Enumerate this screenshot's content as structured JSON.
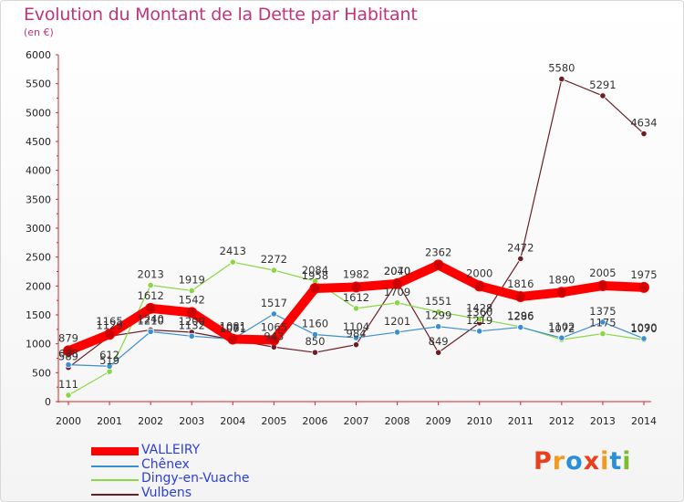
{
  "title": "Evolution du Montant de la Dette par Habitant",
  "unit_label": "(en €)",
  "logo": {
    "text": "Proxiti",
    "colors": [
      "#e8401c",
      "#f39a1e",
      "#2a8fd6",
      "#e8401c",
      "#f39a1e",
      "#2a8fd6",
      "#7bbd2e"
    ]
  },
  "chart_data": {
    "type": "line",
    "title": "Evolution du Montant de la Dette par Habitant",
    "ylabel": "(en €)",
    "xlabel": "",
    "ylim": [
      0,
      6000
    ],
    "yticks": [
      0,
      500,
      1000,
      1500,
      2000,
      2500,
      3000,
      3500,
      4000,
      4500,
      5000,
      5500,
      6000
    ],
    "x": [
      "2000",
      "2001",
      "2002",
      "2003",
      "2004",
      "2005",
      "2006",
      "2007",
      "2008",
      "2009",
      "2010",
      "2011",
      "2012",
      "2013",
      "2014"
    ],
    "grid": false,
    "legend_position": "bottom-left",
    "series": [
      {
        "name": "VALLEIRY",
        "color": "#ff0000",
        "values": [
          879,
          1165,
          1612,
          1542,
          1081,
          1065,
          1958,
          1982,
          2040,
          2362,
          2000,
          1816,
          1890,
          2005,
          1975
        ]
      },
      {
        "name": "Chênex",
        "color": "#3a8fd0",
        "values": [
          638,
          612,
          1210,
          1132,
          1081,
          1517,
          1160,
          1104,
          1201,
          1299,
          1219,
          1286,
          1102,
          1375,
          1090
        ]
      },
      {
        "name": "Dingy-en-Vuache",
        "color": "#8ad645",
        "values": [
          111,
          519,
          2013,
          1919,
          2413,
          2272,
          2084,
          1612,
          1709,
          1551,
          1428,
          1296,
          1072,
          1175,
          1070
        ]
      },
      {
        "name": "Vulbens",
        "color": "#6b1f25",
        "values": [
          589,
          1129,
          1240,
          1200,
          1071,
          943,
          850,
          984,
          2070,
          849,
          1360,
          2472,
          5580,
          5291,
          4634
        ]
      }
    ]
  }
}
